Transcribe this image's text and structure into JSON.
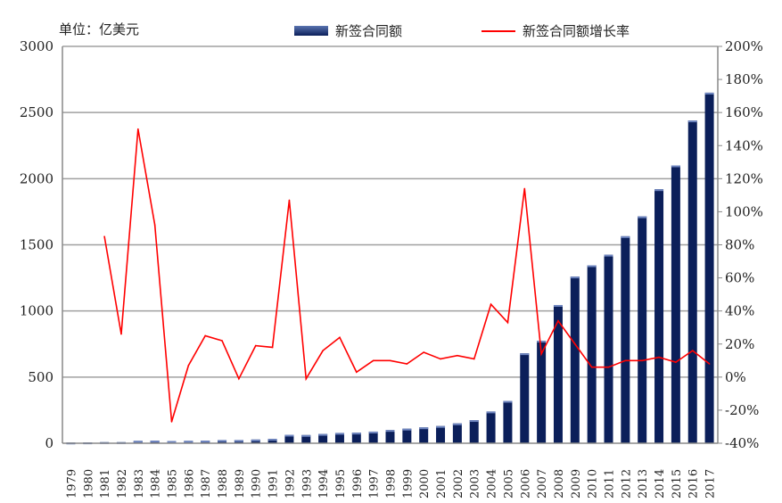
{
  "chart_data": {
    "type": "bar+line",
    "unit_label": "单位：亿美元",
    "categories": [
      "1979",
      "1980",
      "1981",
      "1982",
      "1983",
      "1984",
      "1985",
      "1986",
      "1987",
      "1988",
      "1989",
      "1990",
      "1991",
      "1992",
      "1993",
      "1994",
      "1995",
      "1996",
      "1997",
      "1998",
      "1999",
      "2000",
      "2001",
      "2002",
      "2003",
      "2004",
      "2005",
      "2006",
      "2007",
      "2008",
      "2009",
      "2010",
      "2011",
      "2012",
      "2013",
      "2014",
      "2015",
      "2016",
      "2017"
    ],
    "series": [
      {
        "name": "新签合同额",
        "type": "bar",
        "axis": "left",
        "color": "#0b1f5a",
        "values": [
          5,
          6,
          8,
          8,
          18,
          20,
          16,
          18,
          20,
          24,
          24,
          28,
          33,
          64,
          62,
          70,
          78,
          80,
          88,
          100,
          110,
          120,
          130,
          150,
          175,
          240,
          320,
          680,
          775,
          1045,
          1260,
          1345,
          1425,
          1565,
          1715,
          1920,
          2100,
          2440,
          2650
        ]
      },
      {
        "name": "新签合同额增长率",
        "type": "line",
        "axis": "right",
        "color": "#ff0000",
        "values": [
          null,
          null,
          85,
          26,
          150,
          92,
          -27,
          7,
          25,
          22,
          -1,
          19,
          18,
          107,
          -1,
          16,
          24,
          3,
          10,
          10,
          8,
          15,
          11,
          13,
          11,
          44,
          33,
          114,
          14,
          34,
          20,
          6,
          6,
          10,
          10,
          12,
          9,
          16,
          8
        ]
      }
    ],
    "left_axis": {
      "min": 0,
      "max": 3000,
      "step": 500,
      "ticks": [
        "0",
        "500",
        "1000",
        "1500",
        "2000",
        "2500",
        "3000"
      ]
    },
    "right_axis": {
      "min": -40,
      "max": 200,
      "step": 20,
      "ticks": [
        "-40%",
        "-20%",
        "0%",
        "20%",
        "40%",
        "60%",
        "80%",
        "100%",
        "120%",
        "140%",
        "160%",
        "180%",
        "200%"
      ]
    },
    "grid": true,
    "legend_placement": "top"
  }
}
